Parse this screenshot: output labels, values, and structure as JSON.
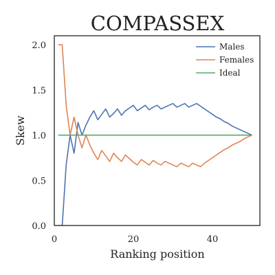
{
  "chart_data": {
    "type": "line",
    "title": "COMPASSEX",
    "xlabel": "Ranking position",
    "ylabel": "Skew",
    "xlim": [
      0,
      52
    ],
    "ylim": [
      0,
      2.1
    ],
    "xticks": [
      0,
      20,
      40
    ],
    "yticks": [
      0.0,
      0.5,
      1.0,
      1.5,
      2.0
    ],
    "xtick_labels": [
      "0",
      "20",
      "40"
    ],
    "ytick_labels": [
      "0.0",
      "0.5",
      "1.0",
      "1.5",
      "2.0"
    ],
    "grid": false,
    "legend_position": "top-right",
    "series": [
      {
        "name": "Males",
        "color": "#4c72b0",
        "x": [
          1,
          2,
          3,
          4,
          5,
          6,
          7,
          8,
          9,
          10,
          11,
          12,
          13,
          14,
          15,
          16,
          17,
          18,
          19,
          20,
          21,
          22,
          23,
          24,
          25,
          26,
          27,
          28,
          29,
          30,
          31,
          32,
          33,
          34,
          35,
          36,
          37,
          38,
          39,
          40,
          41,
          42,
          43,
          44,
          45,
          46,
          47,
          48,
          49,
          50
        ],
        "y": [
          0,
          0,
          0.67,
          1.0,
          0.8,
          1.14,
          1.0,
          1.11,
          1.2,
          1.27,
          1.17,
          1.23,
          1.29,
          1.2,
          1.24,
          1.29,
          1.22,
          1.27,
          1.3,
          1.33,
          1.27,
          1.3,
          1.33,
          1.28,
          1.31,
          1.33,
          1.29,
          1.31,
          1.33,
          1.35,
          1.31,
          1.33,
          1.35,
          1.31,
          1.33,
          1.35,
          1.32,
          1.29,
          1.26,
          1.23,
          1.2,
          1.18,
          1.15,
          1.13,
          1.1,
          1.08,
          1.06,
          1.04,
          1.02,
          1.0
        ]
      },
      {
        "name": "Females",
        "color": "#dd8452",
        "x": [
          1,
          2,
          3,
          4,
          5,
          6,
          7,
          8,
          9,
          10,
          11,
          12,
          13,
          14,
          15,
          16,
          17,
          18,
          19,
          20,
          21,
          22,
          23,
          24,
          25,
          26,
          27,
          28,
          29,
          30,
          31,
          32,
          33,
          34,
          35,
          36,
          37,
          38,
          39,
          40,
          41,
          42,
          43,
          44,
          45,
          46,
          47,
          48,
          49,
          50
        ],
        "y": [
          2.0,
          2.0,
          1.33,
          1.0,
          1.2,
          1.0,
          0.86,
          1.0,
          0.89,
          0.8,
          0.73,
          0.83,
          0.77,
          0.71,
          0.8,
          0.75,
          0.71,
          0.78,
          0.74,
          0.7,
          0.67,
          0.73,
          0.7,
          0.67,
          0.72,
          0.69,
          0.67,
          0.71,
          0.69,
          0.67,
          0.65,
          0.69,
          0.67,
          0.65,
          0.69,
          0.67,
          0.65,
          0.69,
          0.72,
          0.75,
          0.78,
          0.81,
          0.84,
          0.86,
          0.89,
          0.91,
          0.93,
          0.96,
          0.98,
          1.0
        ]
      },
      {
        "name": "Ideal",
        "color": "#55a868",
        "x": [
          1,
          50
        ],
        "y": [
          1.0,
          1.0
        ]
      }
    ]
  }
}
